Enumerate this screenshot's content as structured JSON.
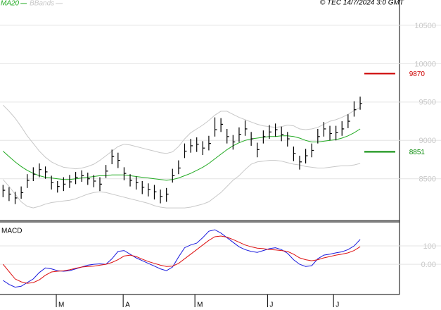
{
  "chart_data": [
    {
      "type": "ohlc",
      "annotation": "© TEC 14/7/2024 3:0 GMT",
      "xlim": [
        -0.5,
        65.5
      ],
      "ylim": [
        7965,
        10830
      ],
      "yticks": [
        8500,
        9000,
        9500,
        10000,
        10500
      ],
      "grid": true,
      "bar_color": "#000000",
      "high": [
        8420,
        8390,
        8330,
        8400,
        8560,
        8650,
        8700,
        8660,
        8540,
        8470,
        8520,
        8550,
        8590,
        8610,
        8580,
        8550,
        8520,
        8680,
        8880,
        8840,
        8650,
        8560,
        8530,
        8470,
        8440,
        8420,
        8360,
        8380,
        8630,
        8740,
        8960,
        9020,
        9040,
        8990,
        9060,
        9300,
        9290,
        9150,
        9070,
        9170,
        9260,
        9110,
        8970,
        9130,
        9200,
        9220,
        9180,
        9110,
        8920,
        8800,
        8890,
        8960,
        9150,
        9240,
        9190,
        9190,
        9250,
        9340,
        9510,
        9570
      ],
      "low": [
        8260,
        8210,
        8170,
        8240,
        8380,
        8470,
        8520,
        8500,
        8360,
        8320,
        8340,
        8380,
        8430,
        8460,
        8420,
        8390,
        8340,
        8510,
        8690,
        8640,
        8480,
        8400,
        8360,
        8300,
        8270,
        8230,
        8180,
        8200,
        8450,
        8560,
        8770,
        8840,
        8850,
        8810,
        8870,
        9050,
        9110,
        8960,
        8880,
        8980,
        9060,
        8930,
        8780,
        8960,
        9020,
        9050,
        8990,
        8920,
        8730,
        8620,
        8700,
        8780,
        8960,
        9050,
        9000,
        9000,
        9060,
        9160,
        9310,
        9400
      ],
      "close": [
        8350,
        8300,
        8250,
        8320,
        8480,
        8560,
        8620,
        8590,
        8450,
        8400,
        8430,
        8460,
        8520,
        8540,
        8500,
        8470,
        8430,
        8600,
        8790,
        8740,
        8570,
        8480,
        8450,
        8390,
        8360,
        8330,
        8270,
        8300,
        8540,
        8640,
        8860,
        8930,
        8950,
        8900,
        8960,
        9140,
        9210,
        9050,
        8980,
        9080,
        9150,
        9020,
        8880,
        9050,
        9110,
        9140,
        9080,
        9020,
        8830,
        8720,
        8800,
        8870,
        9050,
        9150,
        9090,
        9100,
        9150,
        9250,
        9400,
        9480
      ],
      "ma": {
        "name": "MA20",
        "color": "#22aa22",
        "values": [
          8860,
          8790,
          8720,
          8660,
          8610,
          8570,
          8540,
          8520,
          8510,
          8500,
          8490,
          8490,
          8500,
          8510,
          8520,
          8530,
          8540,
          8540,
          8550,
          8550,
          8550,
          8540,
          8530,
          8520,
          8510,
          8500,
          8490,
          8480,
          8490,
          8510,
          8540,
          8570,
          8610,
          8650,
          8700,
          8760,
          8820,
          8880,
          8930,
          8970,
          9000,
          9020,
          9030,
          9040,
          9050,
          9050,
          9060,
          9060,
          9050,
          9030,
          9000,
          8980,
          8980,
          8990,
          9000,
          9010,
          9030,
          9060,
          9100,
          9150
        ]
      },
      "bbands": {
        "name": "BBands",
        "color": "#c8c8c8",
        "upper": [
          9460,
          9380,
          9290,
          9180,
          9060,
          8960,
          8860,
          8780,
          8720,
          8680,
          8650,
          8640,
          8630,
          8640,
          8660,
          8690,
          8740,
          8800,
          8860,
          8920,
          8950,
          8940,
          8920,
          8900,
          8880,
          8860,
          8840,
          8830,
          8850,
          8920,
          9020,
          9100,
          9150,
          9200,
          9260,
          9330,
          9380,
          9380,
          9340,
          9300,
          9270,
          9240,
          9210,
          9190,
          9180,
          9170,
          9180,
          9200,
          9190,
          9150,
          9140,
          9150,
          9170,
          9210,
          9250,
          9270,
          9300,
          9340,
          9390,
          9430
        ],
        "lower": [
          8490,
          8400,
          8300,
          8200,
          8140,
          8120,
          8140,
          8170,
          8190,
          8200,
          8210,
          8220,
          8240,
          8270,
          8300,
          8320,
          8330,
          8320,
          8300,
          8280,
          8260,
          8240,
          8220,
          8200,
          8180,
          8150,
          8130,
          8120,
          8120,
          8120,
          8120,
          8130,
          8150,
          8170,
          8200,
          8260,
          8320,
          8400,
          8480,
          8540,
          8620,
          8690,
          8720,
          8730,
          8740,
          8740,
          8730,
          8710,
          8690,
          8680,
          8660,
          8650,
          8640,
          8640,
          8650,
          8660,
          8670,
          8670,
          8680,
          8700
        ]
      },
      "levels": [
        {
          "value": 9870,
          "color": "#cc0000"
        },
        {
          "value": 8851,
          "color": "#008800"
        }
      ]
    },
    {
      "type": "line",
      "title": "MACD",
      "xlim": [
        -0.5,
        65.5
      ],
      "xticks": [
        {
          "value": 8.8,
          "label": "M"
        },
        {
          "value": 19.85,
          "label": "A"
        },
        {
          "value": 31.7,
          "label": "M"
        },
        {
          "value": 43.7,
          "label": "J"
        },
        {
          "value": 54.6,
          "label": "J"
        }
      ],
      "ylim": [
        -165,
        227
      ],
      "yticks": [
        {
          "value": 0,
          "label": "0.00"
        },
        100
      ],
      "grid": true,
      "series": [
        {
          "color": "#1a1add",
          "values": [
            -88,
            -110,
            -125,
            -120,
            -100,
            -80,
            -45,
            -20,
            -25,
            -35,
            -38,
            -35,
            -25,
            -15,
            -5,
            0,
            2,
            0,
            30,
            70,
            75,
            55,
            35,
            20,
            5,
            -10,
            -25,
            -35,
            -15,
            40,
            90,
            105,
            115,
            145,
            180,
            188,
            170,
            145,
            120,
            95,
            80,
            70,
            65,
            75,
            85,
            90,
            80,
            60,
            25,
            0,
            -12,
            -8,
            30,
            50,
            55,
            62,
            68,
            80,
            100,
            135
          ]
        },
        {
          "color": "#dd1111",
          "values": [
            0,
            -40,
            -80,
            -96,
            -104,
            -100,
            -85,
            -60,
            -42,
            -38,
            -36,
            -30,
            -22,
            -15,
            -12,
            -10,
            -5,
            0,
            10,
            25,
            45,
            50,
            42,
            28,
            15,
            5,
            -5,
            -12,
            -10,
            5,
            30,
            55,
            80,
            105,
            130,
            150,
            154,
            148,
            135,
            120,
            105,
            95,
            88,
            85,
            80,
            78,
            75,
            70,
            55,
            35,
            25,
            19,
            25,
            35,
            42,
            50,
            55,
            62,
            75,
            96
          ]
        }
      ]
    }
  ]
}
